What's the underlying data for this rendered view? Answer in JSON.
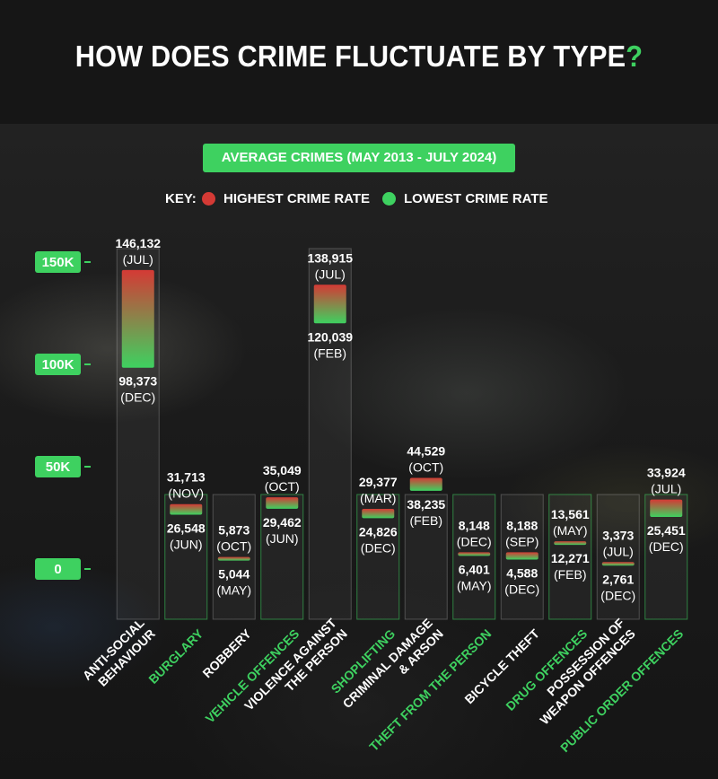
{
  "title": {
    "main": "HOW DOES CRIME FLUCTUATE BY TYPE",
    "mark": "?"
  },
  "subtitle": "AVERAGE CRIMES (MAY 2013 - JULY 2024)",
  "key": {
    "label": "KEY:",
    "highest": "HIGHEST  CRIME RATE",
    "lowest": "LOWEST  CRIME RATE"
  },
  "colors": {
    "accent": "#3ed160",
    "highest": "#d43a35",
    "lowest": "#3ed160",
    "label_green": "#3ed160",
    "label_white": "#ffffff"
  },
  "chart_data": {
    "type": "bar",
    "subtype": "floating range (low to high)",
    "title": "HOW DOES CRIME FLUCTUATE BY TYPE?",
    "subtitle": "AVERAGE CRIMES (MAY 2013 - JULY 2024)",
    "ylim": [
      0,
      150000
    ],
    "yticks": [
      0,
      50000,
      100000,
      150000
    ],
    "ytick_labels": [
      "0",
      "50K",
      "100K",
      "150K"
    ],
    "legend": [
      "HIGHEST  CRIME RATE",
      "LOWEST  CRIME RATE"
    ],
    "legend_position": "top-center",
    "grid": false,
    "categories": [
      {
        "lines": [
          "ANTI-SOCIAL",
          "BEHAVIOUR"
        ],
        "green": false,
        "high": 146132,
        "high_label": "146,132",
        "high_month": "(JUL)",
        "low": 98373,
        "low_label": "98,373",
        "low_month": "(DEC)"
      },
      {
        "lines": [
          "BURGLARY"
        ],
        "green": true,
        "high": 31713,
        "high_label": "31,713",
        "high_month": "(NOV)",
        "low": 26548,
        "low_label": "26,548",
        "low_month": "(JUN)"
      },
      {
        "lines": [
          "ROBBERY"
        ],
        "green": false,
        "high": 5873,
        "high_label": "5,873",
        "high_month": "(OCT)",
        "low": 5044,
        "low_label": "5,044",
        "low_month": "(MAY)"
      },
      {
        "lines": [
          "VEHICLE OFFENCES"
        ],
        "green": true,
        "high": 35049,
        "high_label": "35,049",
        "high_month": "(OCT)",
        "low": 29462,
        "low_label": "29,462",
        "low_month": "(JUN)"
      },
      {
        "lines": [
          "VIOLENCE AGAINST",
          "THE PERSON"
        ],
        "green": false,
        "high": 138915,
        "high_label": "138,915",
        "high_month": "(JUL)",
        "low": 120039,
        "low_label": "120,039",
        "low_month": "(FEB)"
      },
      {
        "lines": [
          "SHOPLIFTING"
        ],
        "green": true,
        "high": 29377,
        "high_label": "29,377",
        "high_month": "(MAR)",
        "low": 24826,
        "low_label": "24,826",
        "low_month": "(DEC)"
      },
      {
        "lines": [
          "CRIMINAL DAMAGE",
          "& ARSON"
        ],
        "green": false,
        "high": 44529,
        "high_label": "44,529",
        "high_month": "(OCT)",
        "low": 38235,
        "low_label": "38,235",
        "low_month": "(FEB)"
      },
      {
        "lines": [
          "THEFT FROM THE PERSON"
        ],
        "green": true,
        "high": 8148,
        "high_label": "8,148",
        "high_month": "(DEC)",
        "low": 6401,
        "low_label": "6,401",
        "low_month": "(MAY)"
      },
      {
        "lines": [
          "BICYCLE THEFT"
        ],
        "green": false,
        "high": 8188,
        "high_label": "8,188",
        "high_month": "(SEP)",
        "low": 4588,
        "low_label": "4,588",
        "low_month": "(DEC)"
      },
      {
        "lines": [
          "DRUG OFFENCES"
        ],
        "green": true,
        "high": 13561,
        "high_label": "13,561",
        "high_month": "(MAY)",
        "low": 12271,
        "low_label": "12,271",
        "low_month": "(FEB)"
      },
      {
        "lines": [
          "POSSESSION OF",
          "WEAPON OFFENCES"
        ],
        "green": false,
        "high": 3373,
        "high_label": "3,373",
        "high_month": "(JUL)",
        "low": 2761,
        "low_label": "2,761",
        "low_month": "(DEC)"
      },
      {
        "lines": [
          "PUBLIC ORDER OFFENCES"
        ],
        "green": true,
        "high": 33924,
        "high_label": "33,924",
        "high_month": "(JUL)",
        "low": 25451,
        "low_label": "25,451",
        "low_month": "(DEC)"
      }
    ]
  }
}
